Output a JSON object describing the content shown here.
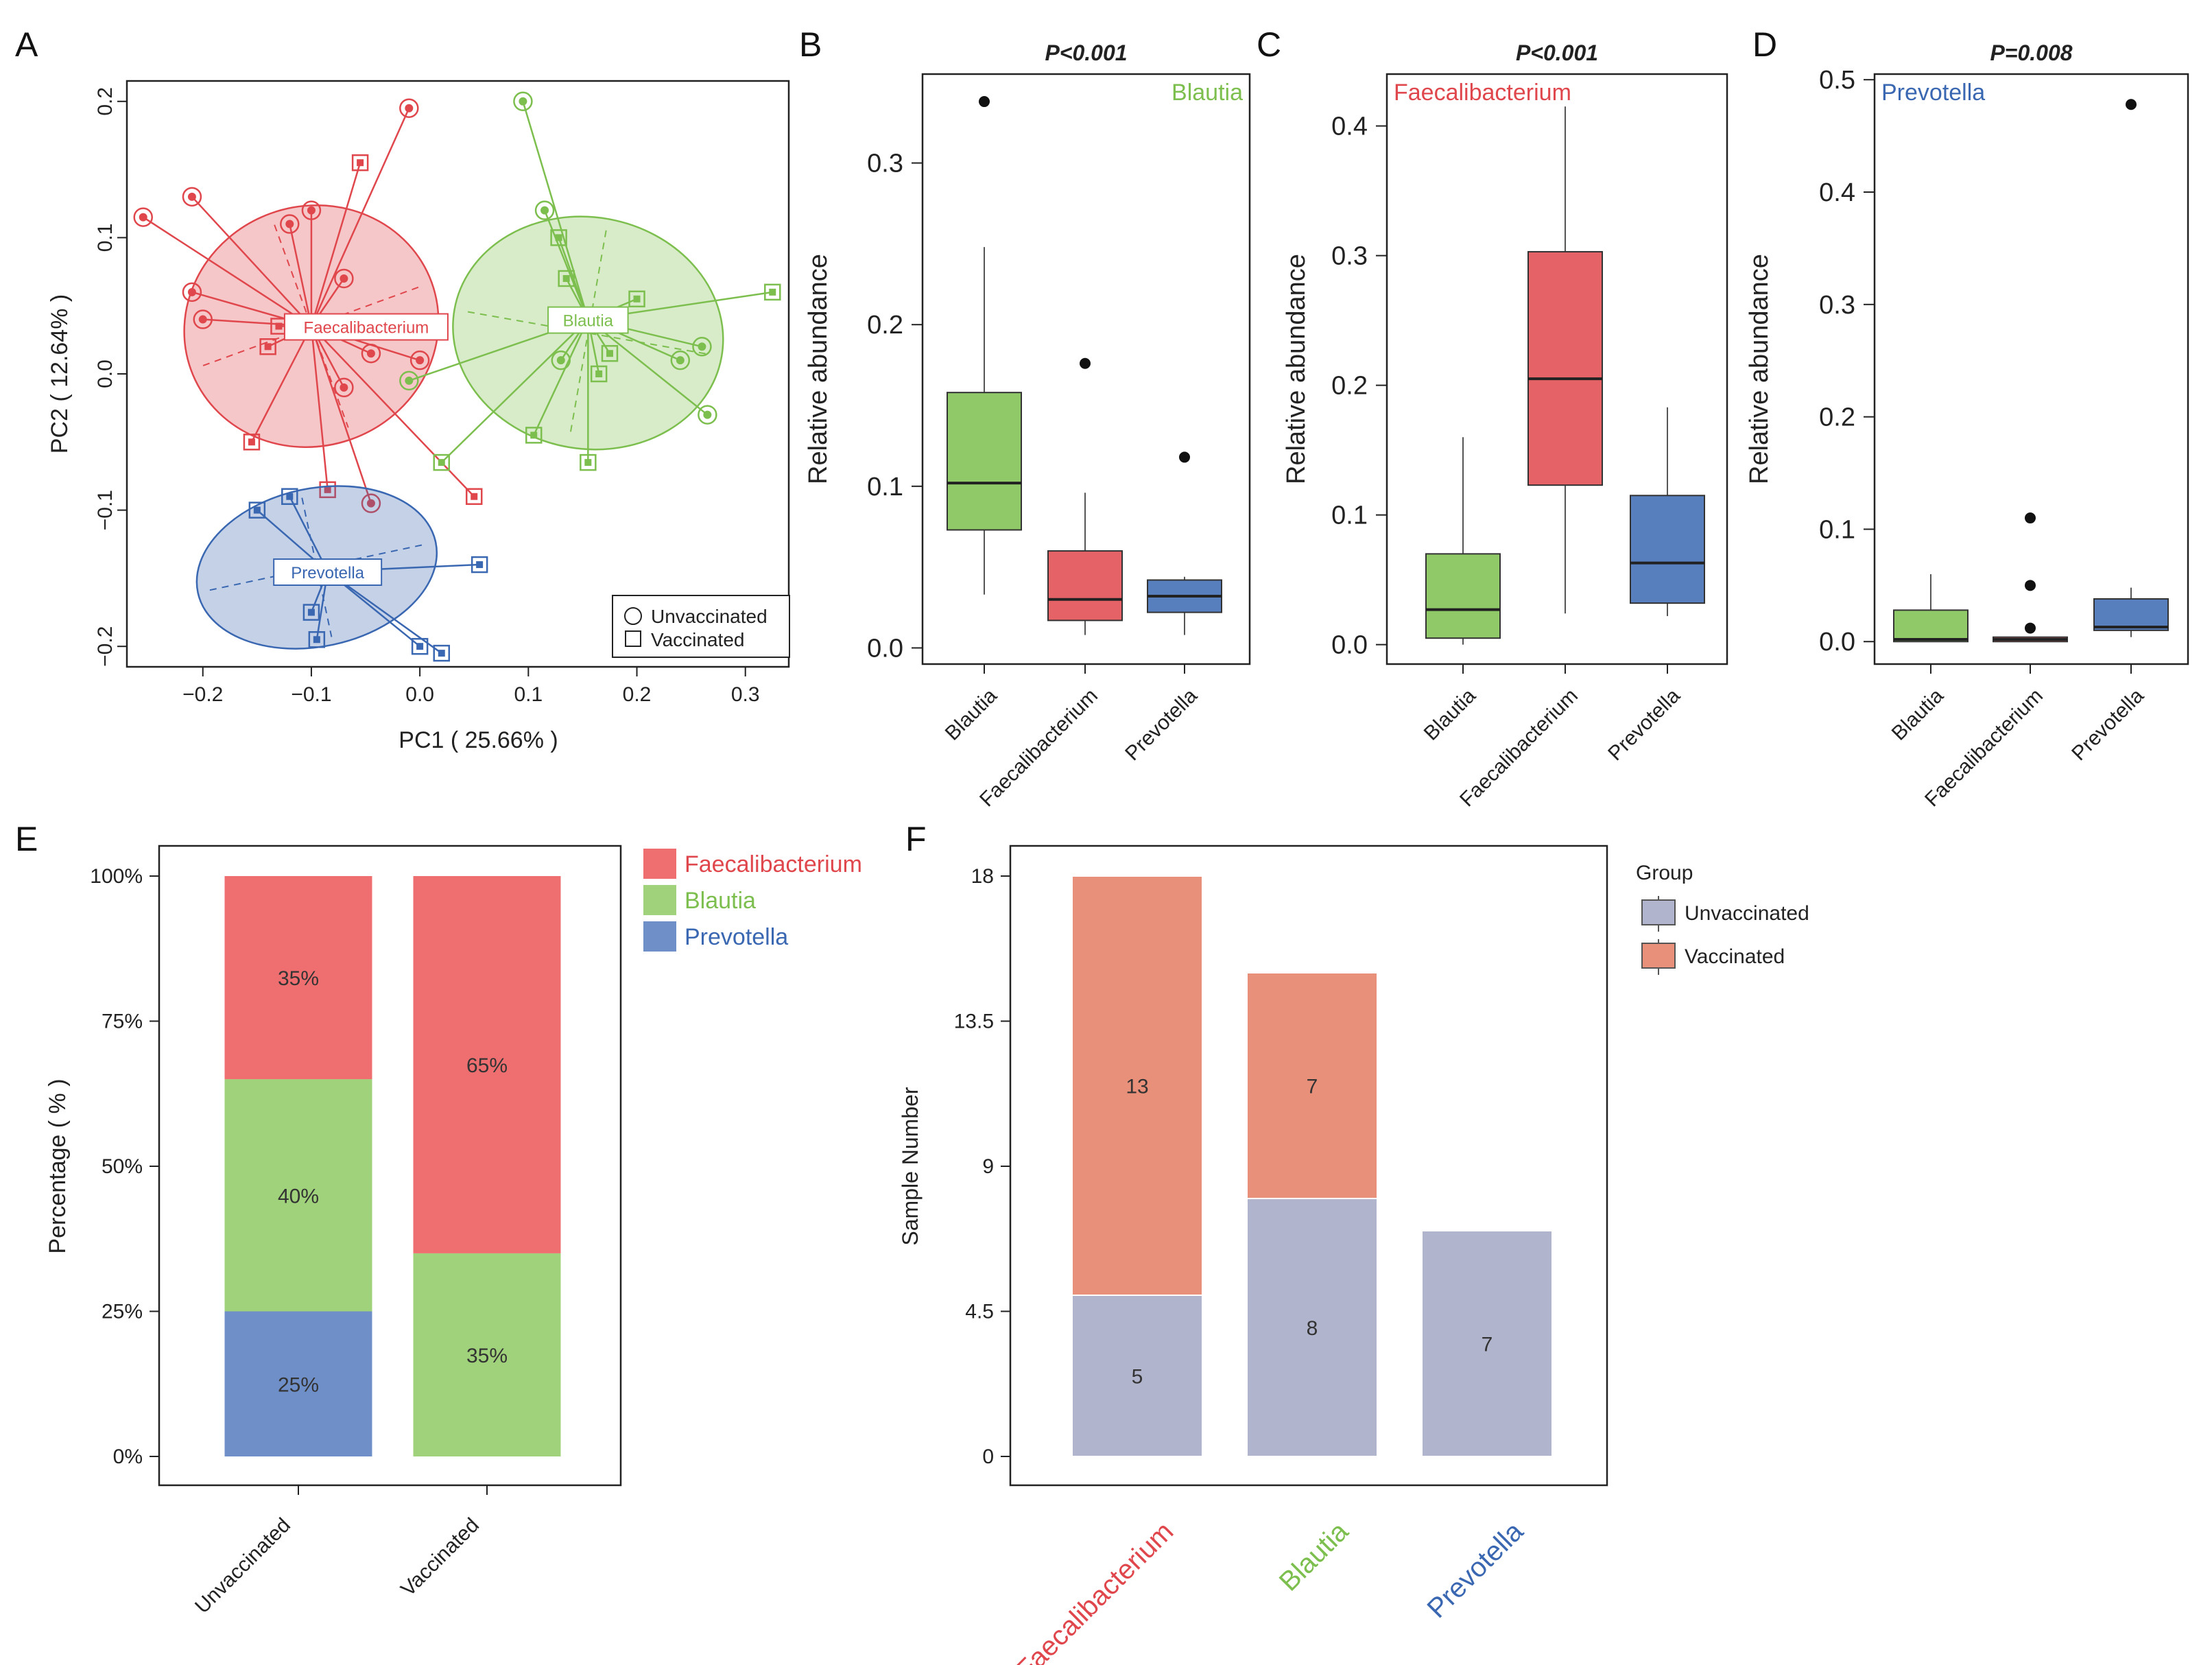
{
  "colors": {
    "faecalibacterium": "#e0474c",
    "faecalibacterium_fill": "#ef6f71",
    "blautia": "#7dbf4e",
    "blautia_fill": "#9fd27a",
    "prevotella": "#3a67b1",
    "prevotella_fill": "#6f8fc8",
    "unvaccinated_bar": "#b0b4cc",
    "vaccinated_bar": "#e8907a",
    "axis": "#222222"
  },
  "chart_data": [
    {
      "panel": "A",
      "type": "scatter",
      "title": "",
      "xlabel": "PC1 ( 25.66% )",
      "ylabel": "PC2 ( 12.64% )",
      "xlim": [
        -0.27,
        0.34
      ],
      "ylim": [
        -0.215,
        0.215
      ],
      "xticks": [
        -0.2,
        -0.1,
        0.0,
        0.1,
        0.2,
        0.3
      ],
      "xtick_labels": [
        "−0.2",
        "−0.1",
        "0.0",
        "0.1",
        "0.2",
        "0.3"
      ],
      "yticks": [
        -0.2,
        -0.1,
        0.0,
        0.1,
        0.2
      ],
      "ytick_labels": [
        "−0.2",
        "−0.1",
        "0.0",
        "0.1",
        "0.2"
      ],
      "legend": {
        "position": "bottom-right",
        "entries": [
          {
            "label": "Unvaccinated",
            "shape": "circle"
          },
          {
            "label": "Vaccinated",
            "shape": "square"
          }
        ]
      },
      "groups": [
        {
          "name": "Faecalibacterium",
          "color_key": "faecalibacterium",
          "centroid": [
            -0.1,
            0.035
          ],
          "ellipse": {
            "cx": -0.1,
            "cy": 0.035,
            "rx": 0.118,
            "ry": 0.088,
            "angle_deg": -20
          },
          "points": [
            {
              "x": -0.255,
              "y": 0.115,
              "shape": "circle"
            },
            {
              "x": -0.21,
              "y": 0.13,
              "shape": "circle"
            },
            {
              "x": -0.21,
              "y": 0.06,
              "shape": "circle"
            },
            {
              "x": -0.2,
              "y": 0.04,
              "shape": "circle"
            },
            {
              "x": -0.12,
              "y": 0.11,
              "shape": "circle"
            },
            {
              "x": -0.1,
              "y": 0.12,
              "shape": "circle"
            },
            {
              "x": -0.07,
              "y": 0.07,
              "shape": "circle"
            },
            {
              "x": -0.07,
              "y": -0.01,
              "shape": "circle"
            },
            {
              "x": -0.045,
              "y": 0.015,
              "shape": "circle"
            },
            {
              "x": -0.01,
              "y": 0.195,
              "shape": "circle"
            },
            {
              "x": 0.0,
              "y": 0.01,
              "shape": "circle"
            },
            {
              "x": -0.045,
              "y": -0.095,
              "shape": "circle"
            },
            {
              "x": -0.13,
              "y": 0.035,
              "shape": "square"
            },
            {
              "x": -0.14,
              "y": 0.02,
              "shape": "square"
            },
            {
              "x": -0.155,
              "y": -0.05,
              "shape": "square"
            },
            {
              "x": -0.055,
              "y": 0.155,
              "shape": "square"
            },
            {
              "x": -0.085,
              "y": -0.085,
              "shape": "square"
            },
            {
              "x": 0.05,
              "y": -0.09,
              "shape": "square"
            }
          ]
        },
        {
          "name": "Blautia",
          "color_key": "blautia",
          "centroid": [
            0.155,
            0.04
          ],
          "ellipse": {
            "cx": 0.155,
            "cy": 0.03,
            "rx": 0.125,
            "ry": 0.085,
            "angle_deg": 10
          },
          "points": [
            {
              "x": 0.095,
              "y": 0.2,
              "shape": "circle"
            },
            {
              "x": 0.115,
              "y": 0.12,
              "shape": "circle"
            },
            {
              "x": -0.01,
              "y": -0.005,
              "shape": "circle"
            },
            {
              "x": 0.13,
              "y": 0.01,
              "shape": "circle"
            },
            {
              "x": 0.26,
              "y": 0.02,
              "shape": "circle"
            },
            {
              "x": 0.24,
              "y": 0.01,
              "shape": "circle"
            },
            {
              "x": 0.265,
              "y": -0.03,
              "shape": "circle"
            },
            {
              "x": 0.128,
              "y": 0.1,
              "shape": "square"
            },
            {
              "x": 0.135,
              "y": 0.07,
              "shape": "square"
            },
            {
              "x": 0.2,
              "y": 0.055,
              "shape": "square"
            },
            {
              "x": 0.325,
              "y": 0.06,
              "shape": "square"
            },
            {
              "x": 0.175,
              "y": 0.015,
              "shape": "square"
            },
            {
              "x": 0.165,
              "y": 0.0,
              "shape": "square"
            },
            {
              "x": 0.105,
              "y": -0.045,
              "shape": "square"
            },
            {
              "x": 0.155,
              "y": -0.065,
              "shape": "square"
            },
            {
              "x": 0.02,
              "y": -0.065,
              "shape": "square"
            }
          ]
        },
        {
          "name": "Prevotella",
          "color_key": "prevotella",
          "centroid": [
            -0.085,
            -0.145
          ],
          "ellipse": {
            "cx": -0.095,
            "cy": -0.142,
            "rx": 0.112,
            "ry": 0.058,
            "angle_deg": -12
          },
          "points": [
            {
              "x": -0.15,
              "y": -0.1,
              "shape": "square"
            },
            {
              "x": -0.12,
              "y": -0.09,
              "shape": "square"
            },
            {
              "x": -0.1,
              "y": -0.175,
              "shape": "square"
            },
            {
              "x": -0.095,
              "y": -0.195,
              "shape": "square"
            },
            {
              "x": 0.0,
              "y": -0.2,
              "shape": "square"
            },
            {
              "x": 0.02,
              "y": -0.205,
              "shape": "square"
            },
            {
              "x": 0.055,
              "y": -0.14,
              "shape": "square"
            }
          ]
        }
      ]
    },
    {
      "panel": "B",
      "type": "box",
      "title": "P<0.001",
      "inset_label": "Blautia",
      "inset_color_key": "blautia",
      "ylabel": "Relative abundance",
      "ylim": [
        -0.01,
        0.355
      ],
      "yticks": [
        0.0,
        0.1,
        0.2,
        0.3
      ],
      "ytick_labels": [
        "0.0",
        "0.1",
        "0.2",
        "0.3"
      ],
      "categories": [
        "Blautia",
        "Faecalibacterium",
        "Prevotella"
      ],
      "boxes": [
        {
          "q1": 0.073,
          "median": 0.102,
          "q3": 0.158,
          "wlo": 0.033,
          "whi": 0.248,
          "outliers": [
            0.338
          ],
          "color_key": "blautia"
        },
        {
          "q1": 0.017,
          "median": 0.03,
          "q3": 0.06,
          "wlo": 0.008,
          "whi": 0.096,
          "outliers": [
            0.176
          ],
          "color_key": "faecalibacterium"
        },
        {
          "q1": 0.022,
          "median": 0.032,
          "q3": 0.042,
          "wlo": 0.008,
          "whi": 0.044,
          "outliers": [
            0.118
          ],
          "color_key": "prevotella"
        }
      ]
    },
    {
      "panel": "C",
      "type": "box",
      "title": "P<0.001",
      "inset_label": "Faecalibacterium",
      "inset_color_key": "faecalibacterium",
      "ylabel": "Relative abundance",
      "ylim": [
        -0.015,
        0.44
      ],
      "yticks": [
        0.0,
        0.1,
        0.2,
        0.3,
        0.4
      ],
      "ytick_labels": [
        "0.0",
        "0.1",
        "0.2",
        "0.3",
        "0.4"
      ],
      "categories": [
        "Blautia",
        "Faecalibacterium",
        "Prevotella"
      ],
      "boxes": [
        {
          "q1": 0.005,
          "median": 0.027,
          "q3": 0.07,
          "wlo": 0.0,
          "whi": 0.16,
          "outliers": [],
          "color_key": "blautia"
        },
        {
          "q1": 0.123,
          "median": 0.205,
          "q3": 0.303,
          "wlo": 0.024,
          "whi": 0.415,
          "outliers": [],
          "color_key": "faecalibacterium"
        },
        {
          "q1": 0.032,
          "median": 0.063,
          "q3": 0.115,
          "wlo": 0.022,
          "whi": 0.183,
          "outliers": [],
          "color_key": "prevotella"
        }
      ]
    },
    {
      "panel": "D",
      "type": "box",
      "title": "P=0.008",
      "inset_label": "Prevotella",
      "inset_color_key": "prevotella",
      "ylabel": "Relative abundance",
      "ylim": [
        -0.02,
        0.505
      ],
      "yticks": [
        0.0,
        0.1,
        0.2,
        0.3,
        0.4,
        0.5
      ],
      "ytick_labels": [
        "0.0",
        "0.1",
        "0.2",
        "0.3",
        "0.4",
        "0.5"
      ],
      "categories": [
        "Blautia",
        "Faecalibacterium",
        "Prevotella"
      ],
      "boxes": [
        {
          "q1": 0.0,
          "median": 0.002,
          "q3": 0.028,
          "wlo": 0.0,
          "whi": 0.06,
          "outliers": [],
          "color_key": "blautia"
        },
        {
          "q1": 0.0,
          "median": 0.002,
          "q3": 0.004,
          "wlo": 0.0,
          "whi": 0.004,
          "outliers": [
            0.012,
            0.05,
            0.11
          ],
          "color_key": "faecalibacterium"
        },
        {
          "q1": 0.01,
          "median": 0.013,
          "q3": 0.038,
          "wlo": 0.004,
          "whi": 0.048,
          "outliers": [
            0.478
          ],
          "color_key": "prevotella"
        }
      ]
    },
    {
      "panel": "E",
      "type": "bar",
      "stacked": true,
      "ylabel": "Percentage ( % )",
      "ylim": [
        0,
        100
      ],
      "yticks": [
        0,
        25,
        50,
        75,
        100
      ],
      "ytick_labels": [
        "0%",
        "25%",
        "50%",
        "75%",
        "100%"
      ],
      "categories": [
        "Unvaccinated",
        "Vaccinated"
      ],
      "legend": {
        "position": "top-right",
        "entries": [
          "Faecalibacterium",
          "Blautia",
          "Prevotella"
        ]
      },
      "series": [
        {
          "name": "Prevotella",
          "color_key": "prevotella_fill",
          "values": [
            25,
            0
          ],
          "labels": [
            "25%",
            ""
          ]
        },
        {
          "name": "Blautia",
          "color_key": "blautia_fill",
          "values": [
            40,
            35
          ],
          "labels": [
            "40%",
            "35%"
          ]
        },
        {
          "name": "Faecalibacterium",
          "color_key": "faecalibacterium_fill",
          "values": [
            35,
            65
          ],
          "labels": [
            "35%",
            "65%"
          ]
        }
      ]
    },
    {
      "panel": "F",
      "type": "bar",
      "stacked": true,
      "ylabel": "Sample Number",
      "ylim": [
        0,
        18
      ],
      "yticks": [
        0,
        4.5,
        9,
        13.5,
        18
      ],
      "ytick_labels": [
        "0",
        "4.5",
        "9",
        "13.5",
        "18"
      ],
      "categories": [
        "Faecalibacterium",
        "Blautia",
        "Prevotella"
      ],
      "category_color_keys": [
        "faecalibacterium",
        "blautia",
        "prevotella"
      ],
      "legend": {
        "position": "top-right",
        "title": "Group",
        "entries": [
          "Unvaccinated",
          "Vaccinated"
        ]
      },
      "series": [
        {
          "name": "Unvaccinated",
          "color_key": "unvaccinated_bar",
          "values": [
            5,
            8,
            7
          ],
          "labels": [
            "5",
            "8",
            "7"
          ]
        },
        {
          "name": "Vaccinated",
          "color_key": "vaccinated_bar",
          "values": [
            13,
            7,
            0
          ],
          "labels": [
            "13",
            "7",
            ""
          ]
        }
      ]
    }
  ],
  "panel_labels": [
    "A",
    "B",
    "C",
    "D",
    "E",
    "F"
  ]
}
